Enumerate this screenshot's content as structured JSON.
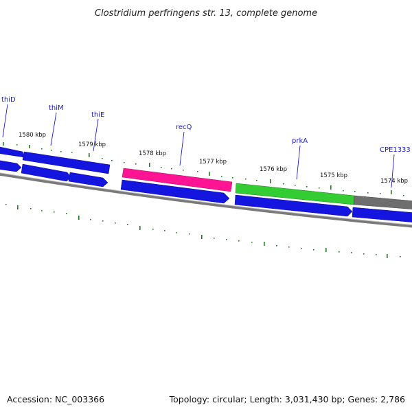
{
  "title": "Clostridium perfringens str. 13, complete genome",
  "footer": {
    "accession": "Accession: NC_003366",
    "summary": "Topology: circular; Length: 3,031,430 bp; Genes: 2,786"
  },
  "colors": {
    "forward_cds": "#1515e0",
    "highlight_pink": "#ff1493",
    "highlight_green": "#33cc33",
    "other_feature": "#6e6e6e",
    "backbone": "#7a7a7a",
    "tick": "#1f7a1f",
    "label": "#1a1acc"
  },
  "kbp_labels": [
    {
      "text": "1580 kbp"
    },
    {
      "text": "1579 kbp"
    },
    {
      "text": "1578 kbp"
    },
    {
      "text": "1577 kbp"
    },
    {
      "text": "1576 kbp"
    },
    {
      "text": "1575 kbp"
    },
    {
      "text": "1574 kbp"
    }
  ],
  "gene_labels": [
    {
      "text": "thiD"
    },
    {
      "text": "thiM"
    },
    {
      "text": "thiE"
    },
    {
      "text": "recQ"
    },
    {
      "text": "prkA"
    },
    {
      "text": "CPE1333"
    }
  ]
}
